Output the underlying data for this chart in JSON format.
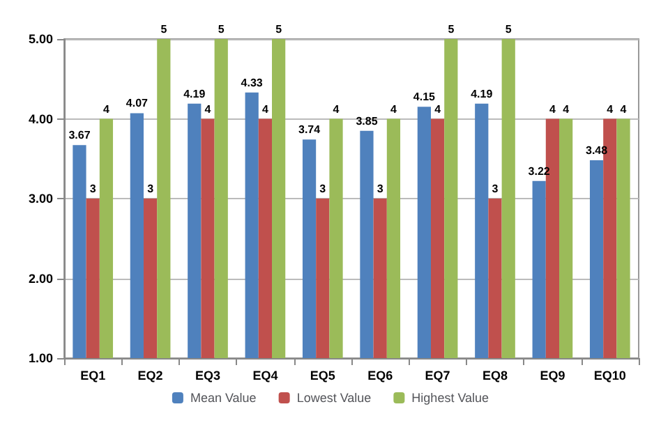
{
  "chart_data": {
    "type": "bar",
    "categories": [
      "EQ1",
      "EQ2",
      "EQ3",
      "EQ4",
      "EQ5",
      "EQ6",
      "EQ7",
      "EQ8",
      "EQ9",
      "EQ10"
    ],
    "series": [
      {
        "name": "Mean Value",
        "color": "#4f81bd",
        "values": [
          3.67,
          4.07,
          4.19,
          4.33,
          3.74,
          3.85,
          4.15,
          4.19,
          3.22,
          3.48
        ]
      },
      {
        "name": "Lowest Value",
        "color": "#c0504d",
        "values": [
          3,
          3,
          4,
          4,
          3,
          3,
          4,
          3,
          4,
          4
        ]
      },
      {
        "name": "Highest Value",
        "color": "#9bbb59",
        "values": [
          4,
          5,
          5,
          5,
          4,
          4,
          5,
          5,
          4,
          4
        ]
      }
    ],
    "ylim": [
      1,
      5
    ],
    "yticks": [
      {
        "value": 1,
        "label": "1.00"
      },
      {
        "value": 2,
        "label": "2.00"
      },
      {
        "value": 3,
        "label": "3.00"
      },
      {
        "value": 4,
        "label": "4.00"
      },
      {
        "value": 5,
        "label": "5.00"
      }
    ],
    "grid": "y",
    "legend": "bottom",
    "data_labels": true
  }
}
